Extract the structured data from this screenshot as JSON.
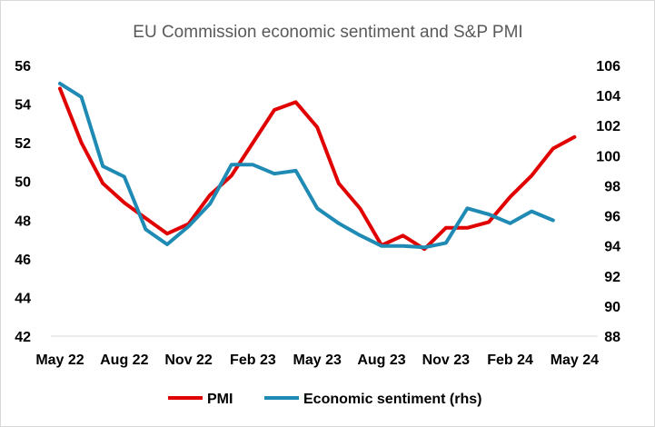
{
  "chart_data": {
    "type": "line",
    "title": "EU Commission economic sentiment and S&P PMI",
    "x_tick_labels": [
      "May 22",
      "Aug 22",
      "Nov 22",
      "Feb 23",
      "May 23",
      "Aug 23",
      "Nov 23",
      "Feb 24",
      "May 24"
    ],
    "y_left": {
      "range": [
        42,
        56
      ],
      "ticks": [
        "42",
        "44",
        "46",
        "48",
        "50",
        "52",
        "54",
        "56"
      ]
    },
    "y_right": {
      "range": [
        88,
        106
      ],
      "ticks": [
        "88",
        "90",
        "92",
        "94",
        "96",
        "98",
        "100",
        "102",
        "104",
        "106"
      ]
    },
    "grid": false,
    "legend_position": "bottom",
    "series": [
      {
        "name": "PMI",
        "axis": "left",
        "color": "#e00000",
        "x": [
          "May 22",
          "Jun 22",
          "Jul 22",
          "Aug 22",
          "Sep 22",
          "Oct 22",
          "Nov 22",
          "Dec 22",
          "Jan 23",
          "Feb 23",
          "Mar 23",
          "Apr 23",
          "May 23",
          "Jun 23",
          "Jul 23",
          "Aug 23",
          "Sep 23",
          "Oct 23",
          "Nov 23",
          "Dec 23",
          "Jan 24",
          "Feb 24",
          "Mar 24",
          "Apr 24",
          "May 24"
        ],
        "values": [
          54.8,
          52.0,
          49.9,
          48.9,
          48.1,
          47.3,
          47.8,
          49.3,
          50.3,
          52.0,
          53.7,
          54.1,
          52.8,
          49.9,
          48.6,
          46.7,
          47.2,
          46.5,
          47.6,
          47.6,
          47.9,
          49.2,
          50.3,
          51.7,
          52.3
        ]
      },
      {
        "name": "Economic sentiment (rhs)",
        "axis": "right",
        "color": "#1f8bb4",
        "x": [
          "May 22",
          "Jun 22",
          "Jul 22",
          "Aug 22",
          "Sep 22",
          "Oct 22",
          "Nov 22",
          "Dec 22",
          "Jan 23",
          "Feb 23",
          "Mar 23",
          "Apr 23",
          "May 23",
          "Jun 23",
          "Jul 23",
          "Aug 23",
          "Sep 23",
          "Oct 23",
          "Nov 23",
          "Dec 23",
          "Jan 24",
          "Feb 24",
          "Mar 24",
          "Apr 24"
        ],
        "values": [
          104.8,
          103.9,
          99.3,
          98.6,
          95.1,
          94.1,
          95.3,
          96.8,
          99.4,
          99.4,
          98.8,
          99.0,
          96.5,
          95.5,
          94.7,
          94.0,
          94.0,
          93.9,
          94.2,
          96.5,
          96.1,
          95.5,
          96.3,
          95.7
        ]
      }
    ]
  }
}
